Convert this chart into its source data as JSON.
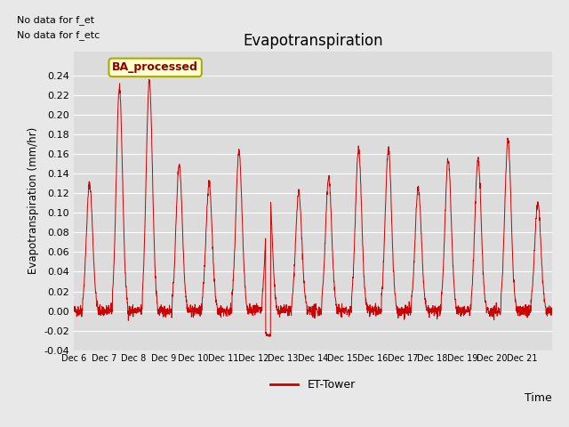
{
  "title": "Evapotranspiration",
  "ylabel": "Evapotranspiration (mm/hr)",
  "xlabel": "Time",
  "ylim": [
    -0.04,
    0.265
  ],
  "yticks": [
    -0.04,
    -0.02,
    0.0,
    0.02,
    0.04,
    0.06,
    0.08,
    0.1,
    0.12,
    0.14,
    0.16,
    0.18,
    0.2,
    0.22,
    0.24
  ],
  "line_color": "#cc0000",
  "legend_label": "ET-Tower",
  "text_no_data1": "No data for f_et",
  "text_no_data2": "No data for f_etc",
  "legend_box_label": "BA_processed",
  "fig_bg": "#e8e8e8",
  "ax_bg": "#dcdcdc",
  "grid_color": "#f0f0f0",
  "days_labels": [
    "Dec 6",
    "Dec 7",
    "Dec 8",
    "Dec 9",
    "Dec 10",
    "Dec 11",
    "Dec 12",
    "Dec 13",
    "Dec 14",
    "Dec 15",
    "Dec 16",
    "Dec 17",
    "Dec 18",
    "Dec 19",
    "Dec 20",
    "Dec 21"
  ],
  "peak_values": [
    0.13,
    0.228,
    0.235,
    0.15,
    0.13,
    0.163,
    0.133,
    0.12,
    0.135,
    0.165,
    0.165,
    0.125,
    0.155,
    0.155,
    0.175,
    0.11
  ],
  "n_per_day": 144,
  "seed": 42
}
